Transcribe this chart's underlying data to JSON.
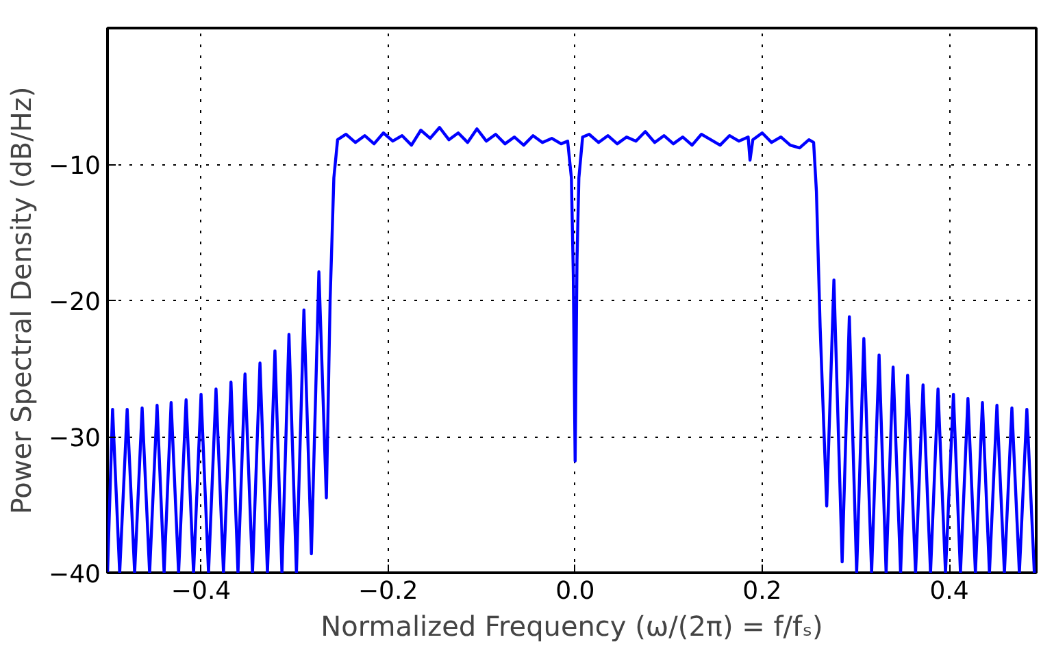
{
  "chart_data": {
    "type": "line",
    "xlabel": "Normalized Frequency (ω/(2π) = f/fₛ)",
    "ylabel": "Power Spectral Density (dB/Hz)",
    "xlim": [
      -0.5,
      0.493
    ],
    "ylim": [
      -40,
      0
    ],
    "xticks": [
      {
        "value": -0.4,
        "label": "−0.4"
      },
      {
        "value": -0.2,
        "label": "−0.2"
      },
      {
        "value": 0.0,
        "label": "0.0"
      },
      {
        "value": 0.2,
        "label": "0.2"
      },
      {
        "value": 0.4,
        "label": "0.4"
      }
    ],
    "yticks": [
      {
        "value": -10,
        "label": "−10"
      },
      {
        "value": -20,
        "label": "−20"
      },
      {
        "value": -30,
        "label": "−30"
      },
      {
        "value": -40,
        "label": "−40"
      }
    ],
    "grid": true,
    "marker": "none",
    "line_style": "solid",
    "x": [
      -0.5,
      -0.4946,
      -0.487,
      -0.479,
      -0.471,
      -0.463,
      -0.455,
      -0.447,
      -0.4395,
      -0.432,
      -0.424,
      -0.416,
      -0.408,
      -0.4,
      -0.392,
      -0.384,
      -0.376,
      -0.368,
      -0.3605,
      -0.353,
      -0.345,
      -0.337,
      -0.329,
      -0.321,
      -0.3135,
      -0.306,
      -0.298,
      -0.29,
      -0.282,
      -0.274,
      -0.266,
      -0.262,
      -0.258,
      -0.254,
      -0.245,
      -0.235,
      -0.225,
      -0.215,
      -0.205,
      -0.195,
      -0.185,
      -0.175,
      -0.165,
      -0.155,
      -0.145,
      -0.135,
      -0.125,
      -0.115,
      -0.105,
      -0.095,
      -0.085,
      -0.075,
      -0.065,
      -0.055,
      -0.045,
      -0.035,
      -0.025,
      -0.015,
      -0.008,
      -0.004,
      -0.002,
      0.0,
      0.002,
      0.004,
      0.008,
      0.015,
      0.025,
      0.035,
      0.045,
      0.055,
      0.065,
      0.075,
      0.085,
      0.095,
      0.105,
      0.115,
      0.125,
      0.135,
      0.145,
      0.155,
      0.165,
      0.175,
      0.185,
      0.187,
      0.19,
      0.2,
      0.21,
      0.22,
      0.23,
      0.24,
      0.25,
      0.255,
      0.258,
      0.262,
      0.269,
      0.2767,
      0.2855,
      0.2932,
      0.301,
      0.3087,
      0.317,
      0.325,
      0.3325,
      0.34,
      0.348,
      0.3555,
      0.364,
      0.372,
      0.38,
      0.388,
      0.396,
      0.4045,
      0.412,
      0.42,
      0.428,
      0.4355,
      0.443,
      0.451,
      0.459,
      0.467,
      0.475,
      0.483,
      0.491
    ],
    "series": [
      {
        "color": "#0000ff",
        "values": [
          -40,
          -28.0,
          -40,
          -28.0,
          -40,
          -27.9,
          -40,
          -27.7,
          -40,
          -27.5,
          -40,
          -27.3,
          -40,
          -26.9,
          -40,
          -26.5,
          -40,
          -26.0,
          -40,
          -25.4,
          -40,
          -24.6,
          -40,
          -23.7,
          -40,
          -22.5,
          -40,
          -20.7,
          -38.6,
          -17.9,
          -34.5,
          -20,
          -11,
          -8.2,
          -7.8,
          -8.4,
          -7.9,
          -8.5,
          -7.7,
          -8.3,
          -7.9,
          -8.6,
          -7.5,
          -8.1,
          -7.3,
          -8.2,
          -7.7,
          -8.4,
          -7.4,
          -8.3,
          -7.8,
          -8.5,
          -8.0,
          -8.6,
          -7.9,
          -8.4,
          -8.1,
          -8.5,
          -8.3,
          -11,
          -18,
          -31.8,
          -17,
          -11,
          -8.0,
          -7.8,
          -8.4,
          -7.9,
          -8.5,
          -8.0,
          -8.3,
          -7.6,
          -8.4,
          -7.9,
          -8.5,
          -8.0,
          -8.6,
          -7.8,
          -8.2,
          -8.6,
          -7.9,
          -8.3,
          -8.0,
          -9.7,
          -8.2,
          -7.7,
          -8.4,
          -8.0,
          -8.6,
          -8.8,
          -8.2,
          -8.4,
          -12,
          -22,
          -35.1,
          -18.5,
          -39.2,
          -21.2,
          -40,
          -22.8,
          -40,
          -24.0,
          -40,
          -24.9,
          -40,
          -25.5,
          -40,
          -26.2,
          -40,
          -26.5,
          -40,
          -26.9,
          -40,
          -27.2,
          -40,
          -27.5,
          -40,
          -27.7,
          -40,
          -27.9,
          -40,
          -28.0,
          -40
        ]
      }
    ]
  }
}
